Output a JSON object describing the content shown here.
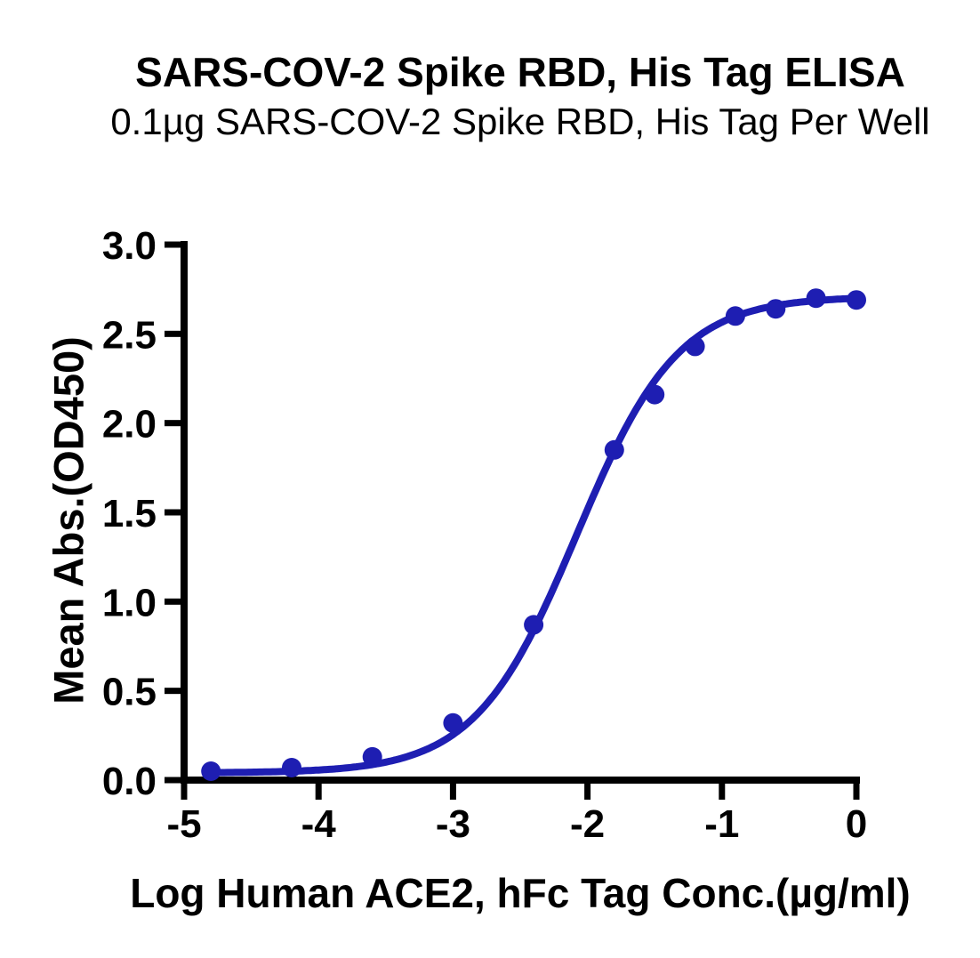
{
  "chart_data": {
    "type": "scatter",
    "title": "SARS-COV-2 Spike RBD, His Tag ELISA",
    "subtitle": "0.1µg SARS-COV-2 Spike RBD, His Tag Per Well",
    "xlabel": "Log Human ACE2, hFc Tag Conc.(µg/ml)",
    "ylabel": "Mean Abs.(OD450)",
    "xlim": [
      -5,
      0
    ],
    "ylim": [
      0,
      3
    ],
    "x_ticks": [
      -5,
      -4,
      -3,
      -2,
      -1,
      0
    ],
    "x_tick_labels": [
      "-5",
      "-4",
      "-3",
      "-2",
      "-1",
      "0"
    ],
    "y_ticks": [
      0,
      0.5,
      1,
      1.5,
      2,
      2.5,
      3
    ],
    "y_tick_labels": [
      "0.0",
      "0.5",
      "1.0",
      "1.5",
      "2.0",
      "2.5",
      "3.0"
    ],
    "grid": false,
    "legend": "none",
    "axis_color": "#000000",
    "background_color": "#ffffff",
    "series": [
      {
        "color": "#1e1eb2",
        "marker": "circle",
        "points": [
          {
            "x": -4.8,
            "y": 0.05
          },
          {
            "x": -4.2,
            "y": 0.07
          },
          {
            "x": -3.6,
            "y": 0.13
          },
          {
            "x": -3.0,
            "y": 0.32
          },
          {
            "x": -2.4,
            "y": 0.87
          },
          {
            "x": -1.8,
            "y": 1.85
          },
          {
            "x": -1.5,
            "y": 2.16
          },
          {
            "x": -1.2,
            "y": 2.43
          },
          {
            "x": -0.9,
            "y": 2.6
          },
          {
            "x": -0.6,
            "y": 2.64
          },
          {
            "x": -0.3,
            "y": 2.7
          },
          {
            "x": 0.0,
            "y": 2.69
          }
        ],
        "fit_curve": {
          "model": "sigmoidal-4PL",
          "bottom": 0.04,
          "top": 2.71,
          "log_ec50": -2.08,
          "hill_slope": 1.15,
          "x_start": -4.8,
          "x_end": 0
        }
      }
    ]
  }
}
